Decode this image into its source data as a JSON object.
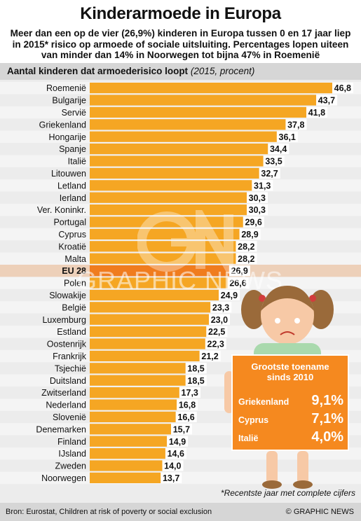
{
  "title": "Kinderarmoede in Europa",
  "subtitle": "Meer dan een op de vier (26,9%) kinderen in Europa tussen 0 en 17 jaar liep in 2015* risico op armoede of sociale uitsluiting. Percentages lopen uiteen van minder dan 14% in Noorwegen tot bijna 47% in Roemenië",
  "axis_title": "Aantal kinderen dat armoederisico loopt",
  "axis_unit": "(2015, procent)",
  "footnote": "*Recentste jaar met complete cijfers",
  "source": "Bron: Eurostat, Children at risk of poverty or social exclusion",
  "copyright": "© GRAPHIC NEWS",
  "watermark": "GRAPHIC NEWS",
  "colors": {
    "bar": "#f5a623",
    "bar_highlight": "#f07c1e",
    "highlight_row": "#f07c1e",
    "board": "#f5891f",
    "background": "#ececec",
    "header_band": "#d6d6d6"
  },
  "callout": {
    "heading_line1": "Grootste toename",
    "heading_line2": "sinds 2010",
    "items": [
      {
        "name": "Griekenland",
        "value": "9,1%"
      },
      {
        "name": "Cyprus",
        "value": "7,1%"
      },
      {
        "name": "Italië",
        "value": "4,0%"
      }
    ]
  },
  "chart_data": {
    "type": "bar",
    "orientation": "horizontal",
    "title": "Aantal kinderen dat armoederisico loopt",
    "unit": "procent",
    "year": "2015",
    "highlight": "EU 28",
    "categories": [
      "Roemenië",
      "Bulgarije",
      "Servië",
      "Griekenland",
      "Hongarije",
      "Spanje",
      "Italië",
      "Litouwen",
      "Letland",
      "Ierland",
      "Ver. Koninkr.",
      "Portugal",
      "Cyprus",
      "Kroatië",
      "Malta",
      "EU 28",
      "Polen",
      "Slowakije",
      "België",
      "Luxemburg",
      "Estland",
      "Oostenrijk",
      "Frankrijk",
      "Tsjechië",
      "Duitsland",
      "Zwitserland",
      "Nederland",
      "Slovenië",
      "Denemarken",
      "Finland",
      "IJsland",
      "Zweden",
      "Noorwegen"
    ],
    "values": [
      46.8,
      43.7,
      41.8,
      37.8,
      36.1,
      34.4,
      33.5,
      32.7,
      31.3,
      30.3,
      30.3,
      29.6,
      28.9,
      28.2,
      28.2,
      26.9,
      26.6,
      24.9,
      23.3,
      23.0,
      22.5,
      22.3,
      21.2,
      18.5,
      18.5,
      17.3,
      16.8,
      16.6,
      15.7,
      14.9,
      14.6,
      14.0,
      13.7
    ],
    "labels": [
      "46,8",
      "43,7",
      "41,8",
      "37,8",
      "36,1",
      "34,4",
      "33,5",
      "32,7",
      "31,3",
      "30,3",
      "30,3",
      "29,6",
      "28,9",
      "28,2",
      "28,2",
      "26,9",
      "26,6",
      "24,9",
      "23,3",
      "23,0",
      "22,5",
      "22,3",
      "21,2",
      "18,5",
      "18,5",
      "17,3",
      "16,8",
      "16,6",
      "15,7",
      "14,9",
      "14,6",
      "14,0",
      "13,7"
    ],
    "xlim": [
      0,
      46.8
    ]
  }
}
